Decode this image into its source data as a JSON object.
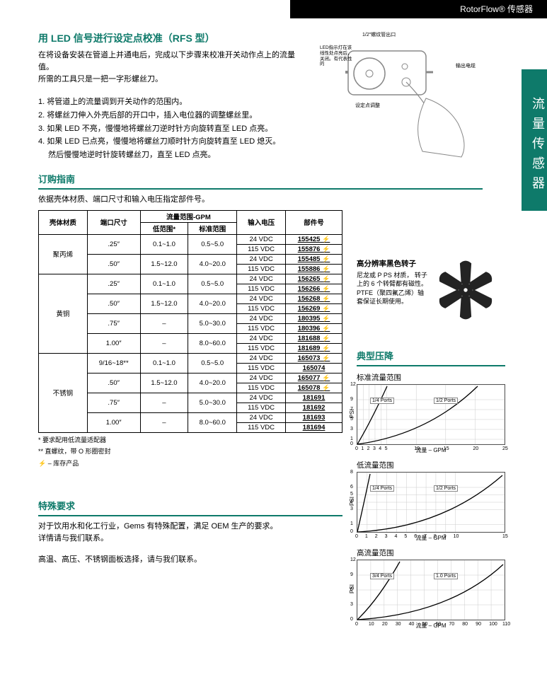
{
  "header": {
    "title": "RotorFlow® 传感器"
  },
  "sideTab": "流量传感器",
  "section1": {
    "title": "用 LED 信号进行设定点校准（RFS 型）",
    "intro1": "在将设备安装在管道上并通电后，完成以下步骤来校准开关动作点上的流量值。",
    "intro2": "所需的工具只是一把一字形螺丝刀。",
    "steps": [
      "1. 将管道上的流量调到开关动作的范围内。",
      "2. 将螺丝刀伸入外壳后部的开口中，插入电位器的调整螺丝里。",
      "3. 如果 LED 不亮，慢慢地将螺丝刀逆时针方向旋转直至 LED 点亮。",
      "4. 如果 LED 已点亮，慢慢地将螺丝刀顺时针方向旋转直至 LED 熄灭。",
      "然后慢慢地逆时针旋转螺丝刀，直至 LED 点亮。"
    ]
  },
  "diagramLabels": {
    "a": "1/2″螺纹管出口",
    "b": "LED指示灯在该线性处点亮后，关闭。有代表性的",
    "c": "输出电缆",
    "d": "设定点调整"
  },
  "section2": {
    "title": "订购指南",
    "intro": "依据壳体材质、端口尺寸和输入电压指定部件号。",
    "headers": {
      "mat": "壳体材质",
      "port": "端口尺寸",
      "flow": "流量范围-GPM",
      "low": "低范围*",
      "std": "标准范围",
      "volt": "输入电压",
      "part": "部件号"
    },
    "rows": [
      {
        "mat": "聚丙烯",
        "port": ".25″",
        "low": "0.1~1.0",
        "std": "0.5~5.0",
        "volt": "24 VDC",
        "part": "155425",
        "b": true
      },
      {
        "mat": "",
        "port": "",
        "low": "",
        "std": "",
        "volt": "115 VDC",
        "part": "155876",
        "b": true
      },
      {
        "mat": "",
        "port": ".50″",
        "low": "1.5~12.0",
        "std": "4.0~20.0",
        "volt": "24 VDC",
        "part": "155485",
        "b": true
      },
      {
        "mat": "",
        "port": "",
        "low": "",
        "std": "",
        "volt": "115 VDC",
        "part": "155886",
        "b": true
      },
      {
        "mat": "黄铜",
        "port": ".25″",
        "low": "0.1~1.0",
        "std": "0.5~5.0",
        "volt": "24 VDC",
        "part": "156265",
        "b": true
      },
      {
        "mat": "",
        "port": "",
        "low": "",
        "std": "",
        "volt": "115 VDC",
        "part": "156266",
        "b": true
      },
      {
        "mat": "",
        "port": ".50″",
        "low": "1.5~12.0",
        "std": "4.0~20.0",
        "volt": "24 VDC",
        "part": "156268",
        "b": true
      },
      {
        "mat": "",
        "port": "",
        "low": "",
        "std": "",
        "volt": "115 VDC",
        "part": "156269",
        "b": true
      },
      {
        "mat": "",
        "port": ".75″",
        "low": "–",
        "std": "5.0~30.0",
        "volt": "24 VDC",
        "part": "180395",
        "b": true
      },
      {
        "mat": "",
        "port": "",
        "low": "",
        "std": "",
        "volt": "115 VDC",
        "part": "180396",
        "b": true
      },
      {
        "mat": "",
        "port": "1.00″",
        "low": "–",
        "std": "8.0~60.0",
        "volt": "24 VDC",
        "part": "181688",
        "b": true
      },
      {
        "mat": "",
        "port": "",
        "low": "",
        "std": "",
        "volt": "115 VDC",
        "part": "181689",
        "b": true
      },
      {
        "mat": "不锈钢",
        "port": "9/16~18**",
        "low": "0.1~1.0",
        "std": "0.5~5.0",
        "volt": "24 VDC",
        "part": "165073",
        "b": true
      },
      {
        "mat": "",
        "port": "",
        "low": "",
        "std": "",
        "volt": "115 VDC",
        "part": "165074",
        "b": false
      },
      {
        "mat": "",
        "port": ".50″",
        "low": "1.5~12.0",
        "std": "4.0~20.0",
        "volt": "24 VDC",
        "part": "165077",
        "b": true
      },
      {
        "mat": "",
        "port": "",
        "low": "",
        "std": "",
        "volt": "115 VDC",
        "part": "165078",
        "b": true
      },
      {
        "mat": "",
        "port": ".75″",
        "low": "–",
        "std": "5.0~30.0",
        "volt": "24 VDC",
        "part": "181691",
        "b": false
      },
      {
        "mat": "",
        "port": "",
        "low": "",
        "std": "",
        "volt": "115 VDC",
        "part": "181692",
        "b": false
      },
      {
        "mat": "",
        "port": "1.00″",
        "low": "–",
        "std": "8.0~60.0",
        "volt": "24 VDC",
        "part": "181693",
        "b": false
      },
      {
        "mat": "",
        "port": "",
        "low": "",
        "std": "",
        "volt": "115 VDC",
        "part": "181694",
        "b": false
      }
    ],
    "foot1": "*  要求配用低流量适配器",
    "foot2": "** 直螺纹，带 O 形圈密封",
    "foot3": "⚡ – 库存产品"
  },
  "rotor": {
    "title": "高分辨率黑色转子",
    "desc": "尼龙或 P PS 材质，  转子上的 6 个转臂都有磁性。PTFE（聚四氟乙烯）轴套保证长期使用。"
  },
  "pressure": {
    "title": "典型压降",
    "chart1": {
      "title": "标准流量范围",
      "yticks": [
        0,
        1,
        3,
        5,
        7,
        9,
        12
      ],
      "xticks": [
        0,
        1,
        2,
        3,
        4,
        5,
        10,
        15,
        20,
        25
      ],
      "xlabel": "流量  – GPM",
      "ylabel": "PSI",
      "label1": "1/4 Ports",
      "label2": "1/2 Ports"
    },
    "chart2": {
      "title": "低流量范围",
      "yticks": [
        0,
        1,
        3,
        4,
        5,
        6,
        8
      ],
      "xticks": [
        0,
        1,
        2,
        3,
        4,
        5,
        6,
        7,
        8,
        9,
        10,
        15
      ],
      "xlabel": "流量  – GPM",
      "ylabel": "PSI",
      "label1": "1/4 Ports",
      "label2": "1/2 Ports"
    },
    "chart3": {
      "title": "高流量范围",
      "yticks": [
        0,
        3,
        6,
        9,
        12
      ],
      "xticks": [
        0,
        10,
        20,
        30,
        40,
        50,
        60,
        70,
        80,
        90,
        100,
        110
      ],
      "xlabel": "流量 – GPM",
      "ylabel": "PSI",
      "label1": "3/4 Ports",
      "label2": "1.0 Ports"
    }
  },
  "section3": {
    "title": "特殊要求",
    "p1": "对于饮用水和化工行业，Gems 有特殊配置，满足 OEM 生产的要求。",
    "p2": "详情请与我们联系。",
    "p3": "高温、高压、不锈钢面板选择，请与我们联系。"
  }
}
